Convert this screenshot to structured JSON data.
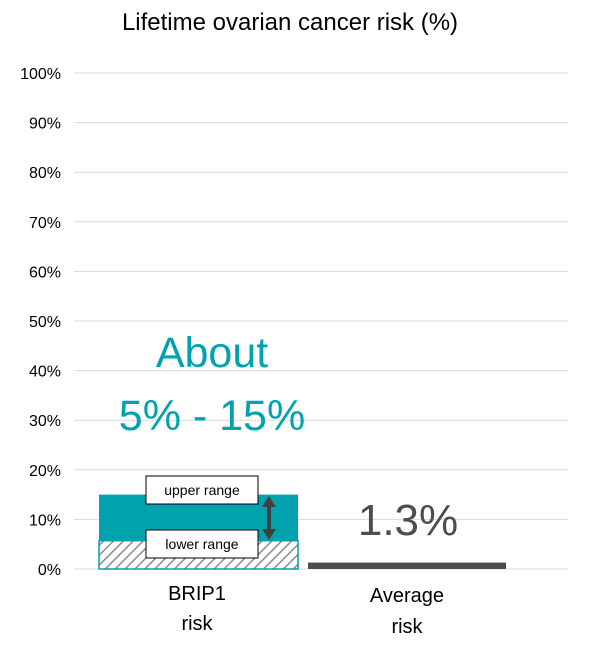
{
  "chart_data": {
    "type": "bar",
    "title": "Lifetime ovarian cancer risk (%)",
    "categories": [
      {
        "line1": "BRIP1",
        "line2": "risk"
      },
      {
        "line1": "Average",
        "line2": "risk"
      }
    ],
    "y_ticks": [
      "0%",
      "10%",
      "20%",
      "30%",
      "40%",
      "50%",
      "60%",
      "70%",
      "80%",
      "90%",
      "100%"
    ],
    "ylim": [
      0,
      100
    ],
    "grid": true,
    "bars": [
      {
        "category": "BRIP1",
        "low": 5.7,
        "high": 15
      },
      {
        "category": "Average",
        "value": 1.3
      }
    ],
    "annotations": {
      "about_line1": "About",
      "about_line2": "5% - 15%",
      "upper_range": "upper range",
      "lower_range": "lower range",
      "average_value": "1.3%"
    },
    "colors": {
      "brip1": "#00A3AD",
      "average": "#4D4D4D",
      "gridline": "#D9D9D9",
      "hatch": "#8C8C8C",
      "arrow": "#404040"
    }
  }
}
